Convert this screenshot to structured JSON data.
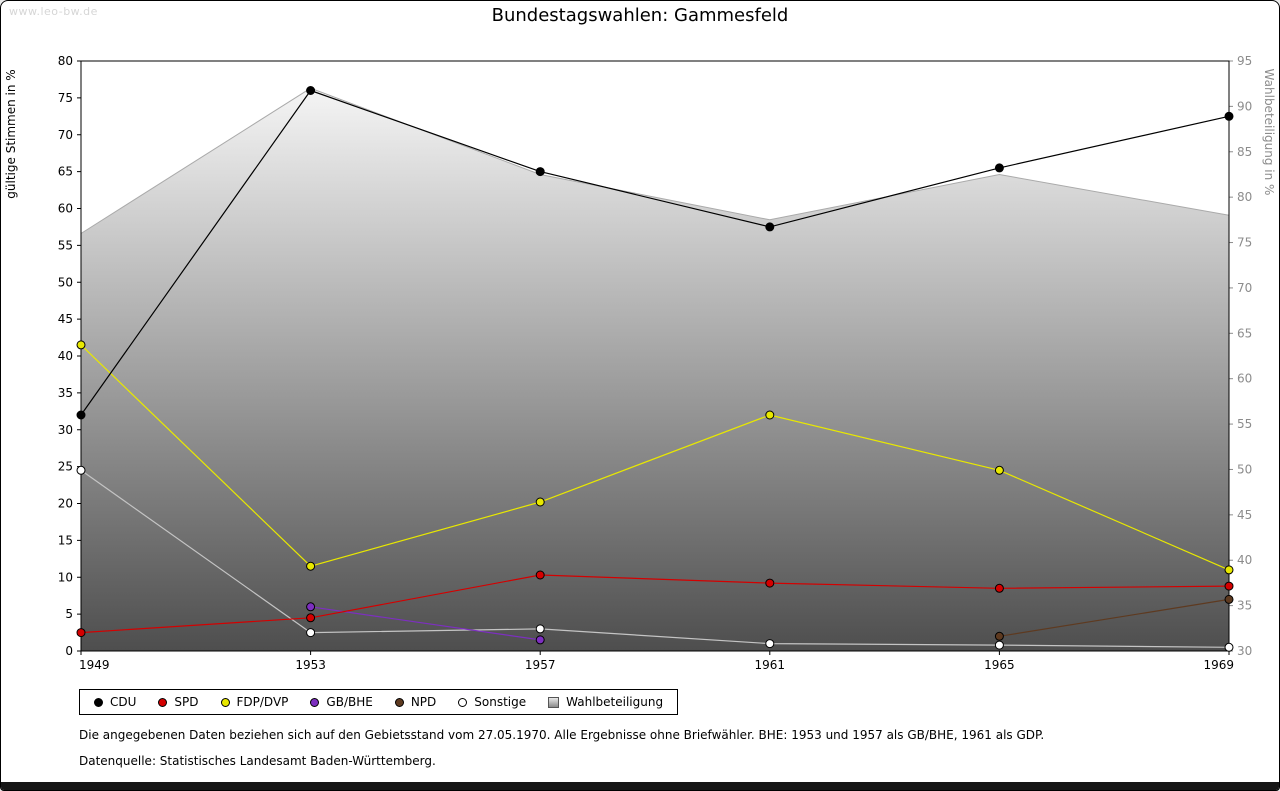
{
  "page": {
    "watermark": "www.leo-bw.de"
  },
  "footnotes": [
    "Die angegebenen Daten beziehen sich auf den Gebietsstand vom 27.05.1970. Alle Ergebnisse ohne Briefwähler. BHE: 1953 und 1957 als GB/BHE, 1961 als GDP.",
    "Datenquelle: Statistisches Landesamt Baden-Württemberg."
  ],
  "chart_data": {
    "type": "line",
    "title": "Bundestagswahlen: Gammesfeld",
    "xlabel": "",
    "ylabel_left": "gültige Stimmen in %",
    "ylabel_right": "Wahlbeteiligung in %",
    "x": [
      1949,
      1953,
      1957,
      1961,
      1965,
      1969
    ],
    "ylim_left": [
      0,
      80
    ],
    "ylim_right": [
      30,
      95
    ],
    "ytick_step": 5,
    "grid": false,
    "legend_position": "bottom",
    "series": [
      {
        "name": "CDU",
        "color": "#000000",
        "axis": "left",
        "values": [
          32,
          76,
          65,
          57.5,
          65.5,
          72.5
        ]
      },
      {
        "name": "SPD",
        "color": "#d40000",
        "axis": "left",
        "values": [
          2.5,
          4.5,
          10.3,
          9.2,
          8.5,
          8.8
        ]
      },
      {
        "name": "FDP/DVP",
        "color": "#e8e800",
        "axis": "left",
        "values": [
          41.5,
          11.5,
          20.2,
          32,
          24.5,
          11
        ]
      },
      {
        "name": "GB/BHE",
        "color": "#7d2fc0",
        "axis": "left",
        "values": [
          null,
          6,
          1.5,
          null,
          null,
          null
        ]
      },
      {
        "name": "NPD",
        "color": "#5e3a20",
        "axis": "left",
        "values": [
          null,
          null,
          null,
          null,
          2,
          7
        ]
      },
      {
        "name": "Sonstige",
        "color": "#c4c4c4",
        "marker_fill": "#ffffff",
        "axis": "left",
        "values": [
          24.5,
          2.5,
          3,
          1,
          0.8,
          0.5
        ]
      },
      {
        "name": "Wahlbeteiligung",
        "color": "#aaaaaa",
        "axis": "right",
        "type": "area",
        "values": [
          76,
          92,
          82.5,
          77.5,
          82.5,
          78
        ]
      }
    ]
  }
}
